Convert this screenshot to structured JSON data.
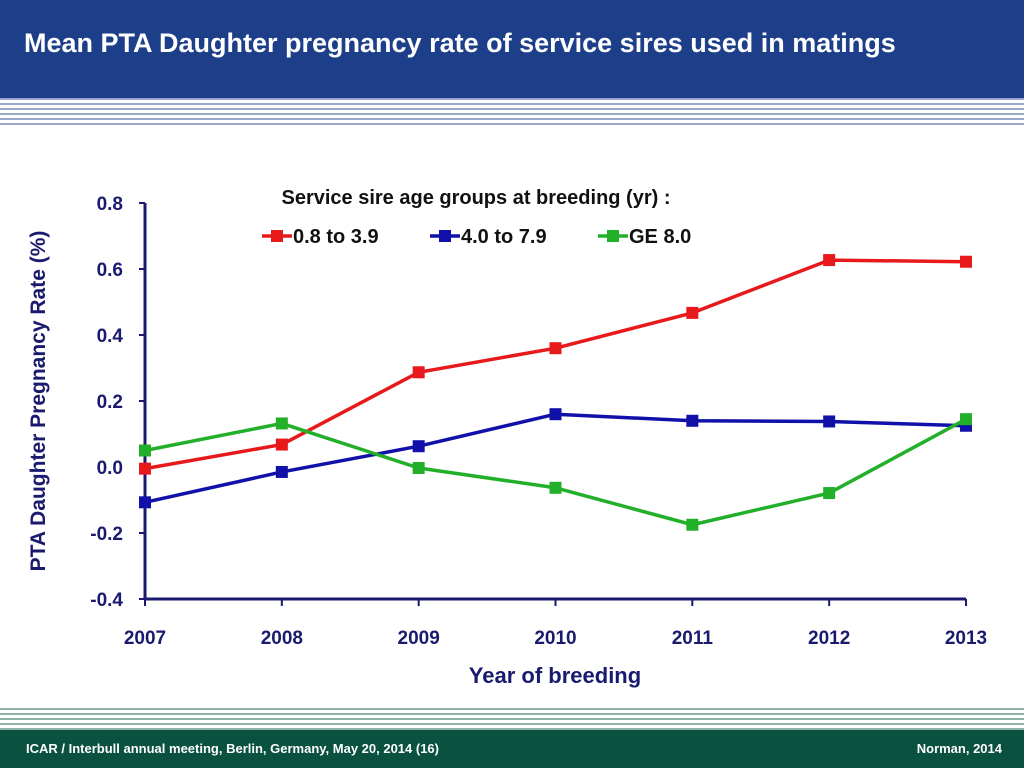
{
  "slide": {
    "title": "Mean PTA Daughter pregnancy rate of service sires used in matings"
  },
  "footer": {
    "left": "ICAR / Interbull annual meeting, Berlin, Germany, May 20, 2014  (16)",
    "right": "Norman, 2014"
  },
  "colors": {
    "header": "#1d3f8a",
    "footer": "#0b5140",
    "text": "#1a1a6e"
  },
  "chart_data": {
    "type": "line",
    "title": "",
    "legend_title": "Service sire age groups at breeding (yr) :",
    "legend_position": "top-center",
    "xlabel": "Year of breeding",
    "ylabel": "PTA Daughter Pregnancy Rate (%)",
    "x": [
      2007,
      2008,
      2009,
      2010,
      2011,
      2012,
      2013
    ],
    "x_tick_labels": [
      "2007",
      "2008",
      "2009",
      "2010",
      "2011",
      "2012",
      "2013"
    ],
    "ylim": [
      -0.4,
      0.8
    ],
    "y_ticks": [
      -0.4,
      -0.2,
      0.0,
      0.2,
      0.4,
      0.6,
      0.8
    ],
    "y_tick_labels": [
      "-0.4",
      "-0.2",
      "0.0",
      "0.2",
      "0.4",
      "0.6",
      "0.8"
    ],
    "grid": false,
    "series": [
      {
        "name": "0.8 to 3.9",
        "color": "#e8191b",
        "values": [
          -0.005,
          0.068,
          0.287,
          0.36,
          0.467,
          0.627,
          0.622
        ]
      },
      {
        "name": "4.0 to 7.9",
        "color": "#1111aa",
        "values": [
          -0.107,
          -0.015,
          0.063,
          0.16,
          0.14,
          0.138,
          0.125
        ]
      },
      {
        "name": "GE 8.0",
        "color": "#22b02a",
        "values": [
          0.05,
          0.132,
          -0.003,
          -0.063,
          -0.175,
          -0.079,
          0.145
        ]
      }
    ]
  }
}
